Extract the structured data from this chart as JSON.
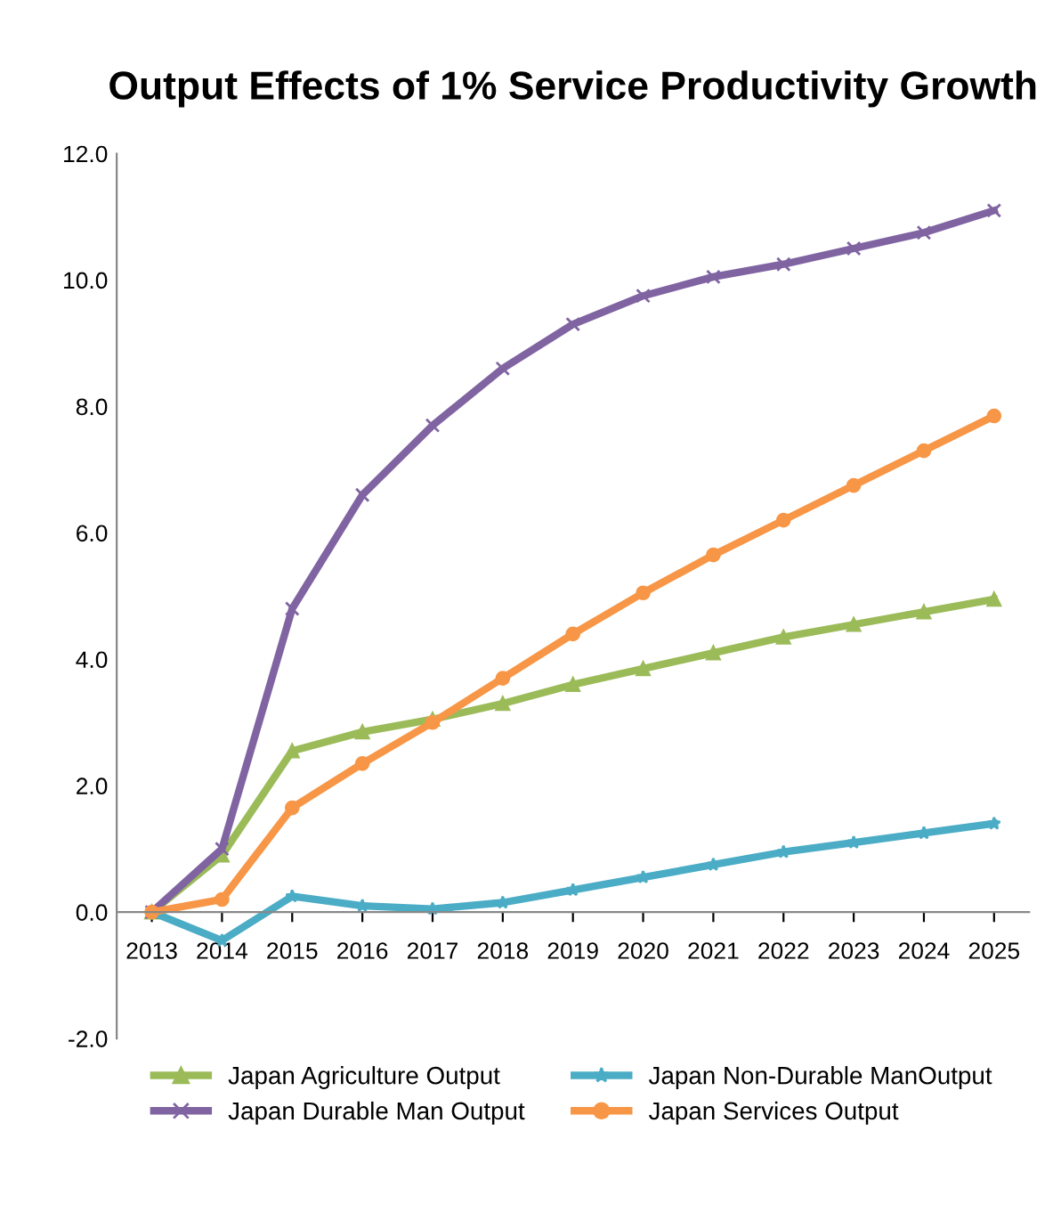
{
  "chart_data": {
    "type": "line",
    "title": "Output Effects of 1% Service Productivity Growth",
    "categories": [
      "2013",
      "2014",
      "2015",
      "2016",
      "2017",
      "2018",
      "2019",
      "2020",
      "2021",
      "2022",
      "2023",
      "2024",
      "2025"
    ],
    "series": [
      {
        "name": "Japan Agriculture Output",
        "color": "#9bbb59",
        "marker": "triangle",
        "values": [
          0,
          0.9,
          2.55,
          2.85,
          3.05,
          3.3,
          3.6,
          3.85,
          4.1,
          4.35,
          4.55,
          4.75,
          4.95
        ]
      },
      {
        "name": "Japan Durable Man Output",
        "color": "#8064a2",
        "marker": "cross",
        "values": [
          0,
          1.0,
          4.8,
          6.6,
          7.7,
          8.6,
          9.3,
          9.75,
          10.05,
          10.25,
          10.5,
          10.75,
          11.1
        ]
      },
      {
        "name": "Japan Non-Durable ManOutput",
        "color": "#4bacc6",
        "marker": "star",
        "values": [
          0,
          -0.45,
          0.25,
          0.1,
          0.05,
          0.15,
          0.35,
          0.55,
          0.75,
          0.95,
          1.1,
          1.25,
          1.4
        ]
      },
      {
        "name": "Japan Services Output",
        "color": "#f79646",
        "marker": "circle",
        "values": [
          0,
          0.2,
          1.65,
          2.35,
          3.0,
          3.7,
          4.4,
          5.05,
          5.65,
          6.2,
          6.75,
          7.3,
          7.85
        ]
      }
    ],
    "ylim": [
      -2,
      12
    ],
    "yticks": [
      {
        "value": -2,
        "label": "-2.0"
      },
      {
        "value": 0,
        "label": "0.0"
      },
      {
        "value": 2,
        "label": "2.0"
      },
      {
        "value": 4,
        "label": "4.0"
      },
      {
        "value": 6,
        "label": "6.0"
      },
      {
        "value": 8,
        "label": "8.0"
      },
      {
        "value": 10,
        "label": "10.0"
      },
      {
        "value": 12,
        "label": "12.0"
      }
    ],
    "grid": false,
    "legend": "bottom",
    "line_style": "solid"
  }
}
